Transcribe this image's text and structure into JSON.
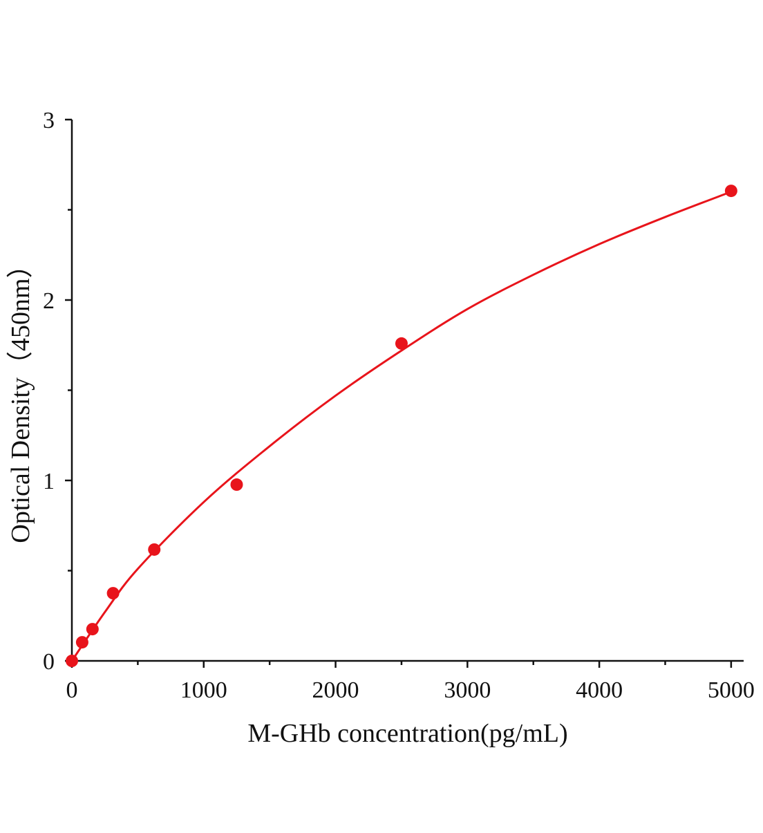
{
  "chart_data": {
    "type": "scatter",
    "x_label": "M-GHb concentration(pg/mL)",
    "y_label": "Optical Density（450nm）",
    "series": [
      {
        "mode": "markers",
        "color": "#e8141b",
        "x": [
          0,
          78.125,
          156.25,
          312.5,
          625,
          1250,
          2500,
          5000
        ],
        "values": [
          0,
          0.103,
          0.176,
          0.375,
          0.617,
          0.977,
          1.759,
          2.605
        ]
      },
      {
        "mode": "line",
        "color": "#e8141b",
        "x": [
          0,
          250,
          500,
          1000,
          1500,
          2000,
          2500,
          3000,
          3500,
          4000,
          4500,
          5000
        ],
        "values": [
          0,
          0.27,
          0.51,
          0.88,
          1.19,
          1.47,
          1.72,
          1.95,
          2.14,
          2.31,
          2.46,
          2.6
        ]
      }
    ],
    "xlim": [
      0,
      5095
    ],
    "xticks": [
      0,
      1000,
      2000,
      3000,
      4000,
      5000
    ],
    "xminorticks": [
      500,
      1500,
      2500,
      3500,
      4500
    ],
    "ylim": [
      0,
      3
    ],
    "yticks": [
      0,
      1,
      2,
      3
    ],
    "yminorticks": [
      0.5,
      1.5,
      2.5
    ]
  }
}
